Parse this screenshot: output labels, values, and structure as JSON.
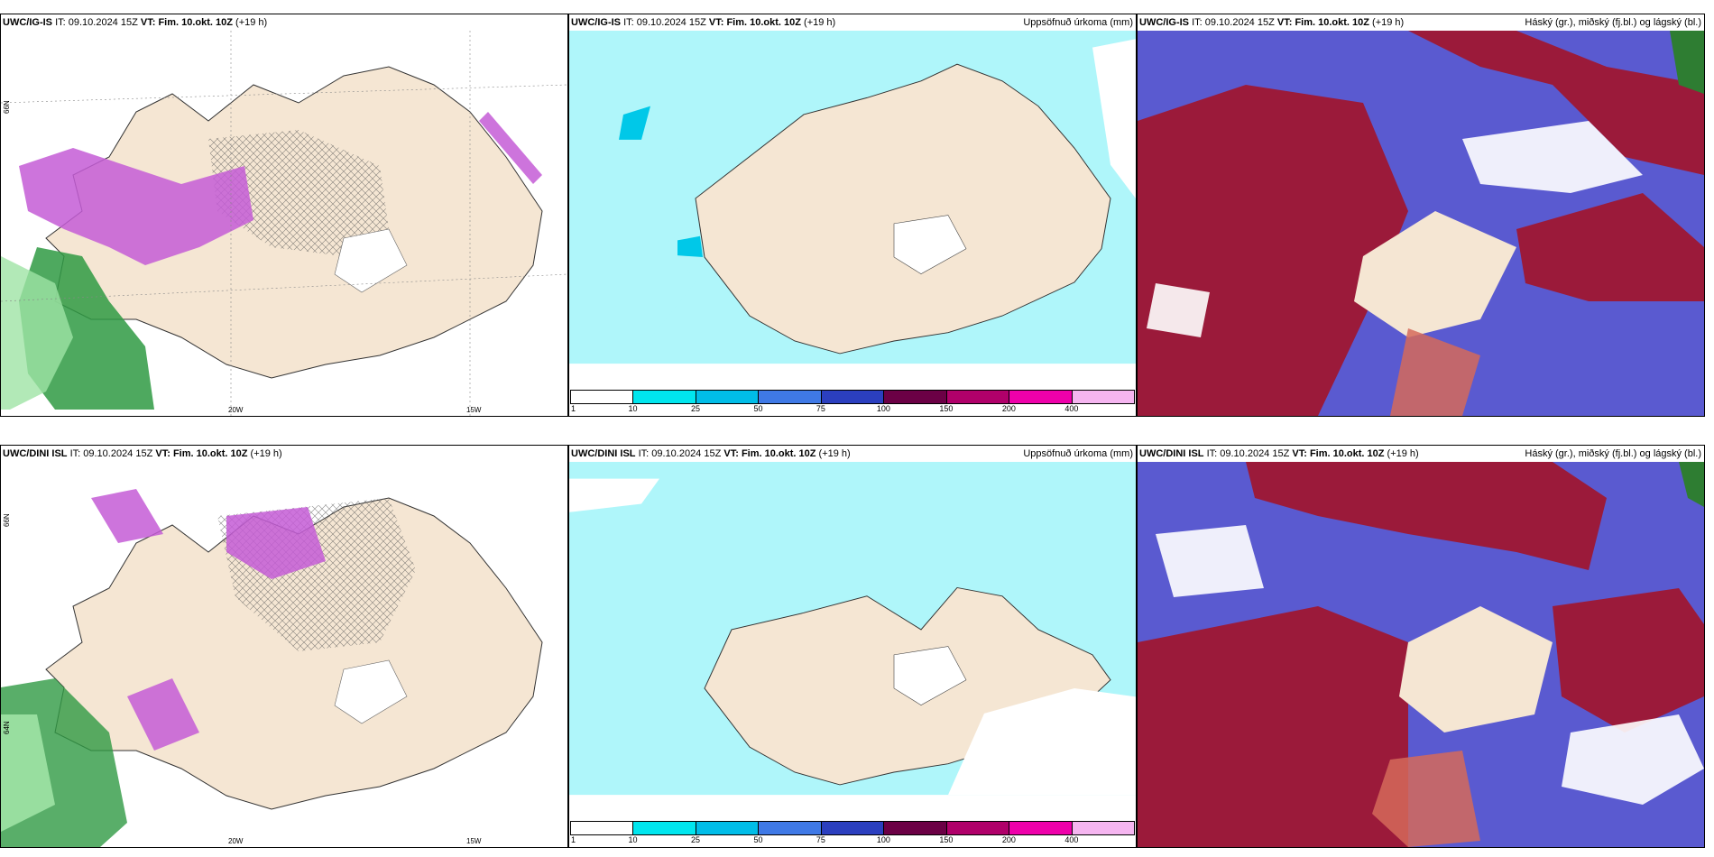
{
  "rows": [
    {
      "model": "UWC/IG-IS",
      "it_label": "IT:",
      "it_value": "09.10.2024 15Z",
      "vt_label": "VT:",
      "vt_value": "Fim. 10.okt. 10Z",
      "lead": "(+19 h)"
    },
    {
      "model": "UWC/DINI ISL",
      "it_label": "IT:",
      "it_value": "09.10.2024 15Z",
      "vt_label": "VT:",
      "vt_value": "Fim. 10.okt. 10Z",
      "lead": "(+19 h)"
    }
  ],
  "panels": {
    "precip_title": "Uppsöfnuð úrkoma (mm)",
    "cloud_title": "Háský (gr.), miðský (fj.bl.) og lágský (bl.)"
  },
  "axis_labels": {
    "lon_20w": "20W",
    "lon_15w": "15W",
    "lat_66n": "66N",
    "lat_64n": "64N"
  },
  "colorbar": {
    "ticks": [
      "1",
      "10",
      "25",
      "50",
      "75",
      "100",
      "150",
      "200",
      "400"
    ],
    "colors": [
      "#aff8fa",
      "#00e6ee",
      "#00bde8",
      "#3f79e6",
      "#2b3fbf",
      "#6b0045",
      "#b0006a",
      "#ee00aa",
      "#f5b5f0"
    ]
  },
  "colors": {
    "land": "#f5e6d3",
    "sea_precip": "#aff6fa",
    "snow_purple": "#c45cd6",
    "rain_green": "#2f9a43",
    "high_cloud": "#2e7d32",
    "mid_cloud": "#9b1a3a",
    "low_cloud": "#5a5ad0"
  }
}
